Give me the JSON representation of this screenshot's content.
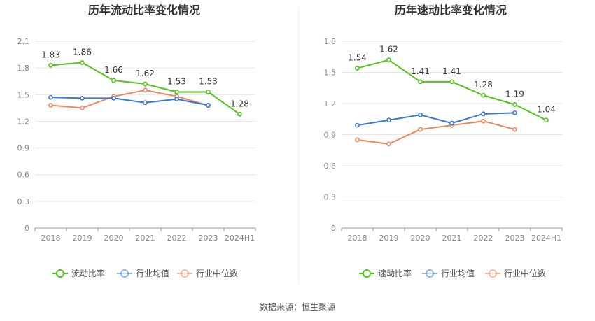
{
  "colors": {
    "primary": "#52c41a",
    "avg": "#3a78d8",
    "median": "#f0865a",
    "grid": "#e6e6e6",
    "axis": "#999999"
  },
  "source": "数据来源：恒生聚源",
  "chart_data": [
    {
      "type": "line",
      "title": "历年流动比率变化情况",
      "categories": [
        "2018",
        "2019",
        "2020",
        "2021",
        "2022",
        "2023",
        "2024H1"
      ],
      "ylim": [
        0,
        2.1
      ],
      "yticks": [
        "0",
        "0.3",
        "0.6",
        "0.9",
        "1.2",
        "1.5",
        "1.8",
        "2.1"
      ],
      "series": [
        {
          "name": "流动比率",
          "values": [
            1.83,
            1.86,
            1.66,
            1.62,
            1.53,
            1.53,
            1.28
          ],
          "labels": [
            "1.83",
            "1.86",
            "1.66",
            "1.62",
            "1.53",
            "1.53",
            "1.28"
          ]
        },
        {
          "name": "行业均值",
          "values": [
            1.47,
            1.46,
            1.46,
            1.41,
            1.45,
            1.38,
            null
          ]
        },
        {
          "name": "行业中位数",
          "values": [
            1.38,
            1.35,
            1.48,
            1.55,
            1.48,
            1.38,
            null
          ]
        }
      ],
      "grid": true,
      "legend": "bottom"
    },
    {
      "type": "line",
      "title": "历年速动比率变化情况",
      "categories": [
        "2018",
        "2019",
        "2020",
        "2021",
        "2022",
        "2023",
        "2024H1"
      ],
      "ylim": [
        0,
        1.8
      ],
      "yticks": [
        "0",
        "0.3",
        "0.6",
        "0.9",
        "1.2",
        "1.5",
        "1.8"
      ],
      "series": [
        {
          "name": "速动比率",
          "values": [
            1.54,
            1.62,
            1.41,
            1.41,
            1.28,
            1.19,
            1.04
          ],
          "labels": [
            "1.54",
            "1.62",
            "1.41",
            "1.41",
            "1.28",
            "1.19",
            "1.04"
          ]
        },
        {
          "name": "行业均值",
          "values": [
            0.99,
            1.04,
            1.09,
            1.01,
            1.1,
            1.11,
            null
          ]
        },
        {
          "name": "行业中位数",
          "values": [
            0.85,
            0.81,
            0.95,
            0.99,
            1.03,
            0.95,
            null
          ]
        }
      ],
      "grid": true,
      "legend": "bottom"
    }
  ]
}
